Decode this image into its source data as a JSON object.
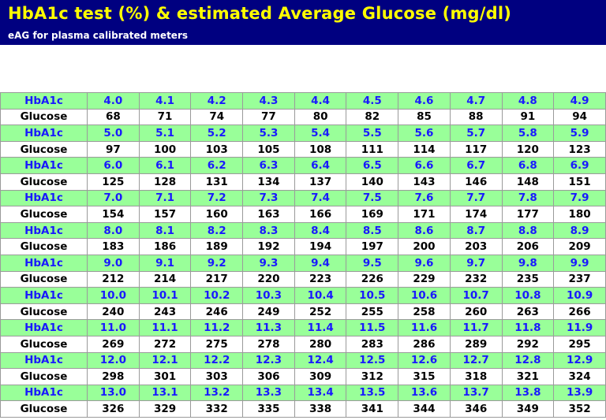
{
  "title": "HbA1c test (%) & estimated Average Glucose (mg/dl)",
  "subtitle": "eAG for plasma calibrated meters",
  "colors": {
    "header_bg": "#000080",
    "title": "#ffff00",
    "hba_row_bg": "#99ff99",
    "hba_text": "#1919ff",
    "glucose_row_bg": "#ffffff"
  },
  "row_labels": {
    "hba1c": "HbA1c",
    "glucose": "Glucose"
  },
  "chart_data": {
    "type": "table",
    "title": "HbA1c test (%) & estimated Average Glucose (mg/dl)",
    "subtitle": "eAG for plasma calibrated meters",
    "blocks": [
      {
        "hba1c": [
          "4.0",
          "4.1",
          "4.2",
          "4.3",
          "4.4",
          "4.5",
          "4.6",
          "4.7",
          "4.8",
          "4.9"
        ],
        "glucose": [
          "68",
          "71",
          "74",
          "77",
          "80",
          "82",
          "85",
          "88",
          "91",
          "94"
        ]
      },
      {
        "hba1c": [
          "5.0",
          "5.1",
          "5.2",
          "5.3",
          "5.4",
          "5.5",
          "5.6",
          "5.7",
          "5.8",
          "5.9"
        ],
        "glucose": [
          "97",
          "100",
          "103",
          "105",
          "108",
          "111",
          "114",
          "117",
          "120",
          "123"
        ]
      },
      {
        "hba1c": [
          "6.0",
          "6.1",
          "6.2",
          "6.3",
          "6.4",
          "6.5",
          "6.6",
          "6.7",
          "6.8",
          "6.9"
        ],
        "glucose": [
          "125",
          "128",
          "131",
          "134",
          "137",
          "140",
          "143",
          "146",
          "148",
          "151"
        ]
      },
      {
        "hba1c": [
          "7.0",
          "7.1",
          "7.2",
          "7.3",
          "7.4",
          "7.5",
          "7.6",
          "7.7",
          "7.8",
          "7.9"
        ],
        "glucose": [
          "154",
          "157",
          "160",
          "163",
          "166",
          "169",
          "171",
          "174",
          "177",
          "180"
        ]
      },
      {
        "hba1c": [
          "8.0",
          "8.1",
          "8.2",
          "8.3",
          "8.4",
          "8.5",
          "8.6",
          "8.7",
          "8.8",
          "8.9"
        ],
        "glucose": [
          "183",
          "186",
          "189",
          "192",
          "194",
          "197",
          "200",
          "203",
          "206",
          "209"
        ]
      },
      {
        "hba1c": [
          "9.0",
          "9.1",
          "9.2",
          "9.3",
          "9.4",
          "9.5",
          "9.6",
          "9.7",
          "9.8",
          "9.9"
        ],
        "glucose": [
          "212",
          "214",
          "217",
          "220",
          "223",
          "226",
          "229",
          "232",
          "235",
          "237"
        ]
      },
      {
        "hba1c": [
          "10.0",
          "10.1",
          "10.2",
          "10.3",
          "10.4",
          "10.5",
          "10.6",
          "10.7",
          "10.8",
          "10.9"
        ],
        "glucose": [
          "240",
          "243",
          "246",
          "249",
          "252",
          "255",
          "258",
          "260",
          "263",
          "266"
        ]
      },
      {
        "hba1c": [
          "11.0",
          "11.1",
          "11.2",
          "11.3",
          "11.4",
          "11.5",
          "11.6",
          "11.7",
          "11.8",
          "11.9"
        ],
        "glucose": [
          "269",
          "272",
          "275",
          "278",
          "280",
          "283",
          "286",
          "289",
          "292",
          "295"
        ]
      },
      {
        "hba1c": [
          "12.0",
          "12.1",
          "12.2",
          "12.3",
          "12.4",
          "12.5",
          "12.6",
          "12.7",
          "12.8",
          "12.9"
        ],
        "glucose": [
          "298",
          "301",
          "303",
          "306",
          "309",
          "312",
          "315",
          "318",
          "321",
          "324"
        ]
      },
      {
        "hba1c": [
          "13.0",
          "13.1",
          "13.2",
          "13.3",
          "13.4",
          "13.5",
          "13.6",
          "13.7",
          "13.8",
          "13.9"
        ],
        "glucose": [
          "326",
          "329",
          "332",
          "335",
          "338",
          "341",
          "344",
          "346",
          "349",
          "352"
        ]
      }
    ]
  }
}
